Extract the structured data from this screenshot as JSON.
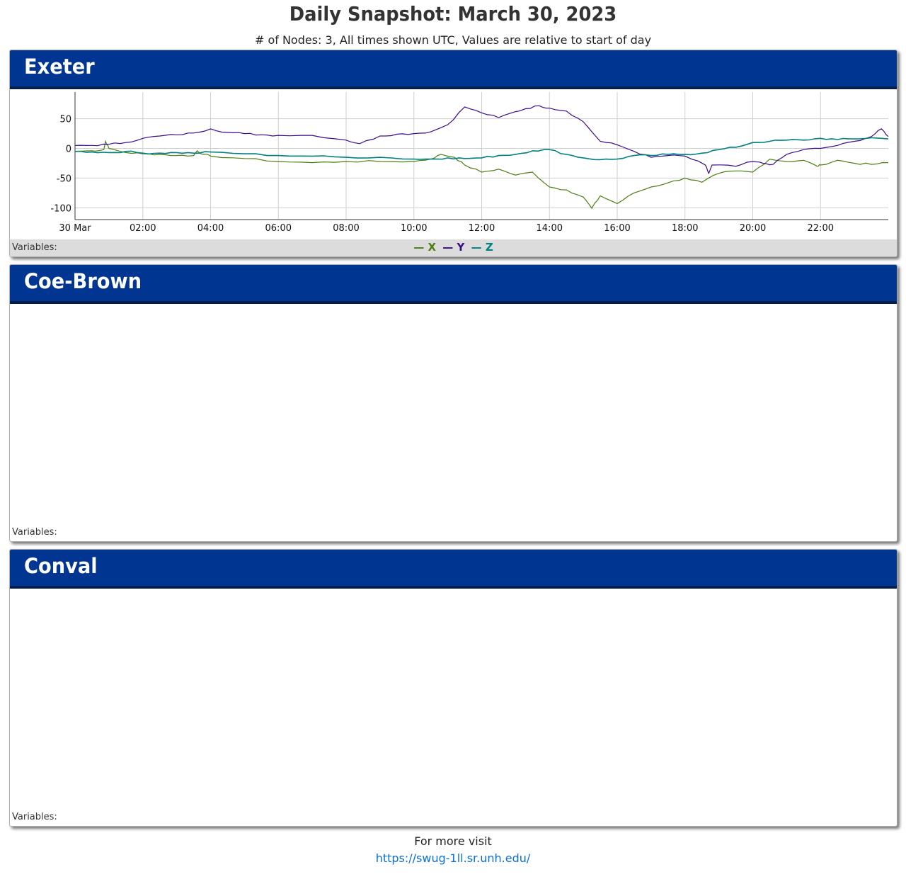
{
  "header": {
    "title": "Daily Snapshot: March 30, 2023",
    "subtitle": "# of Nodes: 3, All times shown UTC, Values are relative to start of day"
  },
  "panels": [
    {
      "name": "Exeter",
      "variables_label": "Variables:"
    },
    {
      "name": "Coe-Brown",
      "variables_label": "Variables:"
    },
    {
      "name": "Conval",
      "variables_label": "Variables:"
    }
  ],
  "legend": [
    {
      "dash": "—",
      "name": "X"
    },
    {
      "dash": "—",
      "name": "Y"
    },
    {
      "dash": "—",
      "name": "Z"
    }
  ],
  "footer": {
    "text": "For more visit",
    "link": "https://swug-1ll.sr.unh.edu/"
  },
  "colors": {
    "header": "#003591",
    "X": "#4a7f10",
    "Y": "#3c0a8c",
    "Z": "#008080",
    "link": "#0b6fd6"
  },
  "chart_data": {
    "type": "line",
    "title": "",
    "xlabel": "",
    "ylabel": "",
    "xlim": [
      0,
      24
    ],
    "ylim": [
      -120,
      95
    ],
    "grid": true,
    "legend_position": "bottom",
    "x_ticks": [
      {
        "v": 0,
        "label": "30 Mar"
      },
      {
        "v": 2,
        "label": "02:00"
      },
      {
        "v": 4,
        "label": "04:00"
      },
      {
        "v": 6,
        "label": "06:00"
      },
      {
        "v": 8,
        "label": "08:00"
      },
      {
        "v": 10,
        "label": "10:00"
      },
      {
        "v": 12,
        "label": "12:00"
      },
      {
        "v": 14,
        "label": "14:00"
      },
      {
        "v": 16,
        "label": "16:00"
      },
      {
        "v": 18,
        "label": "18:00"
      },
      {
        "v": 20,
        "label": "20:00"
      },
      {
        "v": 22,
        "label": "22:00"
      }
    ],
    "y_ticks": [
      {
        "v": 50,
        "label": "50"
      },
      {
        "v": 0,
        "label": "0"
      },
      {
        "v": -50,
        "label": "-50"
      },
      {
        "v": -100,
        "label": "-100"
      }
    ],
    "series": [
      {
        "name": "X",
        "color": "#4a7f10",
        "points": [
          [
            0,
            -5
          ],
          [
            0.5,
            -4
          ],
          [
            0.85,
            -2
          ],
          [
            0.9,
            12
          ],
          [
            1.0,
            0
          ],
          [
            1.5,
            -7
          ],
          [
            2,
            -9
          ],
          [
            2.5,
            -10
          ],
          [
            3,
            -12
          ],
          [
            3.5,
            -12
          ],
          [
            3.6,
            -4
          ],
          [
            3.8,
            -10
          ],
          [
            4,
            -13
          ],
          [
            5,
            -17
          ],
          [
            6,
            -22
          ],
          [
            7,
            -24
          ],
          [
            8,
            -22
          ],
          [
            9,
            -22
          ],
          [
            10,
            -22
          ],
          [
            10.5,
            -18
          ],
          [
            10.8,
            -10
          ],
          [
            11.2,
            -15
          ],
          [
            11.5,
            -28
          ],
          [
            12,
            -40
          ],
          [
            12.5,
            -35
          ],
          [
            13,
            -45
          ],
          [
            13.5,
            -40
          ],
          [
            14,
            -65
          ],
          [
            14.5,
            -70
          ],
          [
            15,
            -82
          ],
          [
            15.25,
            -101
          ],
          [
            15.5,
            -80
          ],
          [
            16,
            -93
          ],
          [
            16.5,
            -75
          ],
          [
            17,
            -65
          ],
          [
            17.5,
            -58
          ],
          [
            18,
            -50
          ],
          [
            18.5,
            -57
          ],
          [
            19,
            -42
          ],
          [
            19.5,
            -38
          ],
          [
            20,
            -40
          ],
          [
            20.5,
            -18
          ],
          [
            21,
            -22
          ],
          [
            21.5,
            -20
          ],
          [
            21.9,
            -30
          ],
          [
            22,
            -28
          ],
          [
            22.5,
            -20
          ],
          [
            23,
            -25
          ],
          [
            23.5,
            -27
          ],
          [
            24,
            -24
          ]
        ]
      },
      {
        "name": "Y",
        "color": "#3c0a8c",
        "points": [
          [
            0,
            5
          ],
          [
            0.5,
            5
          ],
          [
            1,
            7
          ],
          [
            1.5,
            10
          ],
          [
            2,
            17
          ],
          [
            2.5,
            21
          ],
          [
            3,
            23
          ],
          [
            3.5,
            26
          ],
          [
            4,
            33
          ],
          [
            4.5,
            27
          ],
          [
            5,
            25
          ],
          [
            5.5,
            23
          ],
          [
            6,
            22
          ],
          [
            7,
            22
          ],
          [
            8,
            14
          ],
          [
            8.4,
            8
          ],
          [
            9,
            21
          ],
          [
            9.5,
            24
          ],
          [
            10,
            25
          ],
          [
            10.5,
            28
          ],
          [
            11,
            40
          ],
          [
            11.5,
            70
          ],
          [
            12,
            60
          ],
          [
            12.5,
            52
          ],
          [
            13,
            62
          ],
          [
            13.3,
            67
          ],
          [
            13.7,
            72
          ],
          [
            14,
            68
          ],
          [
            14.5,
            63
          ],
          [
            15,
            45
          ],
          [
            15.5,
            12
          ],
          [
            16,
            6
          ],
          [
            16.5,
            -5
          ],
          [
            17,
            -15
          ],
          [
            17.5,
            -12
          ],
          [
            18,
            -13
          ],
          [
            18.6,
            -28
          ],
          [
            18.7,
            -42
          ],
          [
            18.8,
            -28
          ],
          [
            19.5,
            -30
          ],
          [
            20,
            -22
          ],
          [
            20.3,
            -25
          ],
          [
            20.6,
            -27
          ],
          [
            21,
            -10
          ],
          [
            21.5,
            -2
          ],
          [
            22,
            0
          ],
          [
            22.5,
            5
          ],
          [
            23,
            12
          ],
          [
            23.5,
            20
          ],
          [
            23.8,
            33
          ],
          [
            24,
            20
          ]
        ]
      },
      {
        "name": "Z",
        "color": "#008080",
        "points": [
          [
            0,
            -5
          ],
          [
            0.5,
            -6
          ],
          [
            1,
            -7
          ],
          [
            1.5,
            -5
          ],
          [
            2,
            -8
          ],
          [
            2.5,
            -8
          ],
          [
            3,
            -7
          ],
          [
            3.5,
            -8
          ],
          [
            4,
            -6
          ],
          [
            5,
            -9
          ],
          [
            6,
            -12
          ],
          [
            7,
            -13
          ],
          [
            8,
            -15
          ],
          [
            9,
            -15
          ],
          [
            10,
            -18
          ],
          [
            10.5,
            -18
          ],
          [
            11,
            -16
          ],
          [
            11.5,
            -17
          ],
          [
            12,
            -16
          ],
          [
            12.5,
            -12
          ],
          [
            13,
            -10
          ],
          [
            13.5,
            -4
          ],
          [
            14,
            -2
          ],
          [
            14.5,
            -10
          ],
          [
            15,
            -16
          ],
          [
            15.5,
            -19
          ],
          [
            16,
            -18
          ],
          [
            16.5,
            -12
          ],
          [
            17,
            -12
          ],
          [
            17.5,
            -10
          ],
          [
            18,
            -10
          ],
          [
            18.5,
            -8
          ],
          [
            19,
            -2
          ],
          [
            19.5,
            2
          ],
          [
            20,
            10
          ],
          [
            20.5,
            12
          ],
          [
            21,
            14
          ],
          [
            21.5,
            14
          ],
          [
            22,
            17
          ],
          [
            22.5,
            15
          ],
          [
            23,
            16
          ],
          [
            23.5,
            18
          ],
          [
            24,
            16
          ]
        ]
      }
    ]
  }
}
